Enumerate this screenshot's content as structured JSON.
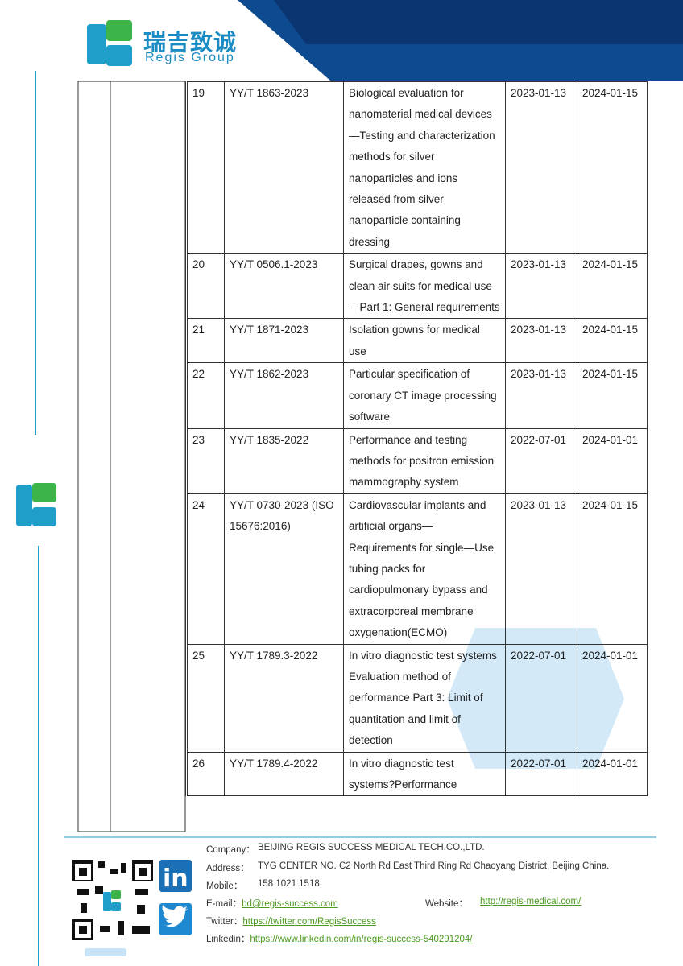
{
  "header": {
    "brand_cn": "瑞吉致诚",
    "brand_en": "Regis Group"
  },
  "table": {
    "rows": [
      [
        "19",
        "YY/T 1863-2023",
        "Biological evaluation for nanomaterial medical devices—Testing and characterization methods for silver nanoparticles and ions released from silver nanoparticle containing dressing",
        "2023-01-13",
        "2024-01-15"
      ],
      [
        "20",
        "YY/T 0506.1-2023",
        "Surgical drapes, gowns and clean air suits for medical use—Part 1: General requirements",
        "2023-01-13",
        "2024-01-15"
      ],
      [
        "21",
        "YY/T 1871-2023",
        "Isolation gowns for medical use",
        "2023-01-13",
        "2024-01-15"
      ],
      [
        "22",
        "YY/T 1862-2023",
        "Particular specification of coronary CT image processing software",
        "2023-01-13",
        "2024-01-15"
      ],
      [
        "23",
        "YY/T 1835-2022",
        "Performance and testing methods for positron emission mammography system",
        "2022-07-01",
        "2024-01-01"
      ],
      [
        "24",
        "YY/T 0730-2023 (ISO 15676:2016)",
        "Cardiovascular implants and artificial organs—Requirements for single—Use tubing packs for cardiopulmonary bypass and extracorporeal membrane oxygenation(ECMO)",
        "2023-01-13",
        "2024-01-15"
      ],
      [
        "25",
        "YY/T 1789.3-2022",
        "In vitro diagnostic test systems Evaluation method of performance Part 3: Limit of quantitation and limit of detection",
        "2022-07-01",
        "2024-01-01"
      ],
      [
        "26",
        "YY/T 1789.4-2022",
        "In vitro diagnostic test systems?Performance",
        "2022-07-01",
        "2024-01-01"
      ]
    ]
  },
  "footer": {
    "linkedin_icon": "in",
    "company_label": "Company：",
    "company": "BEIJING REGIS SUCCESS MEDICAL TECH.CO.,LTD.",
    "address_label": "Address：",
    "address": "TYG CENTER NO. C2 North Rd East Third Ring Rd Chaoyang District, Beijing China.",
    "mobile_label": "Mobile：",
    "mobile": "158 1021 1518",
    "email_label": "E-mail：",
    "email": "bd@regis-success.com",
    "website_label": "Website：",
    "website": "http://regis-medical.com/",
    "twitter_label": "Twitter：",
    "twitter": "https://twitter.com/RegisSuccess",
    "linkedin_label": "Linkedin：",
    "linkedin": "https://www.linkedin.com/in/regis-success-540291204/"
  }
}
